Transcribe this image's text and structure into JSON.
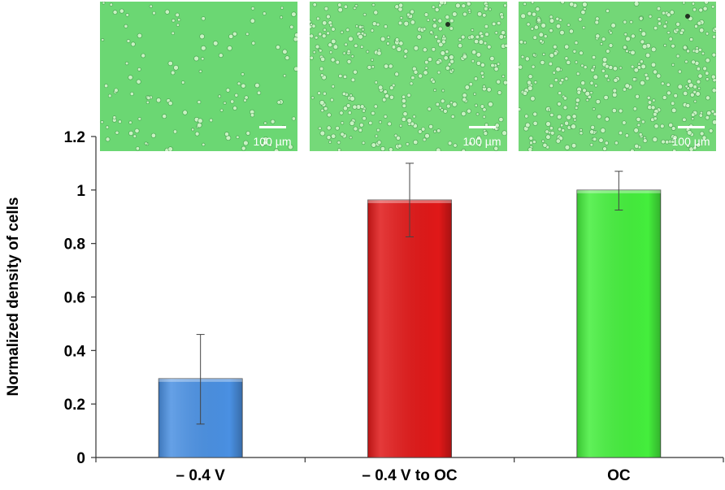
{
  "figure": {
    "ylabel": "Normalized density of cells",
    "scale_bar_label": "100 µm"
  },
  "chart_data": {
    "type": "bar",
    "categories": [
      "– 0.4 V",
      "– 0.4 V to OC",
      "OC"
    ],
    "values": [
      0.295,
      0.963,
      1.0
    ],
    "error_low": [
      0.125,
      0.825,
      0.925
    ],
    "error_high": [
      0.46,
      1.1,
      1.07
    ],
    "colors": [
      "#4a90e2",
      "#e01818",
      "#44ee3c"
    ],
    "ylabel": "Normalized density of cells",
    "ylim": [
      0,
      1.2
    ],
    "yticks": [
      0,
      0.2,
      0.4,
      0.6,
      0.8,
      1,
      1.2
    ],
    "ytick_labels": [
      "0",
      "0.2",
      "0.4",
      "0.6",
      "0.8",
      "1",
      "1.2"
    ],
    "grid": false,
    "legend": "none"
  },
  "micrographs": [
    {
      "category": "– 0.4 V",
      "cell_density": 0.3,
      "scale_bar": "100 µm",
      "background": "#5fd468"
    },
    {
      "category": "– 0.4 V to OC",
      "cell_density": 0.96,
      "scale_bar": "100 µm",
      "background": "#6ad66e"
    },
    {
      "category": "OC",
      "cell_density": 1.0,
      "scale_bar": "100 µm",
      "background": "#68d46c"
    }
  ]
}
